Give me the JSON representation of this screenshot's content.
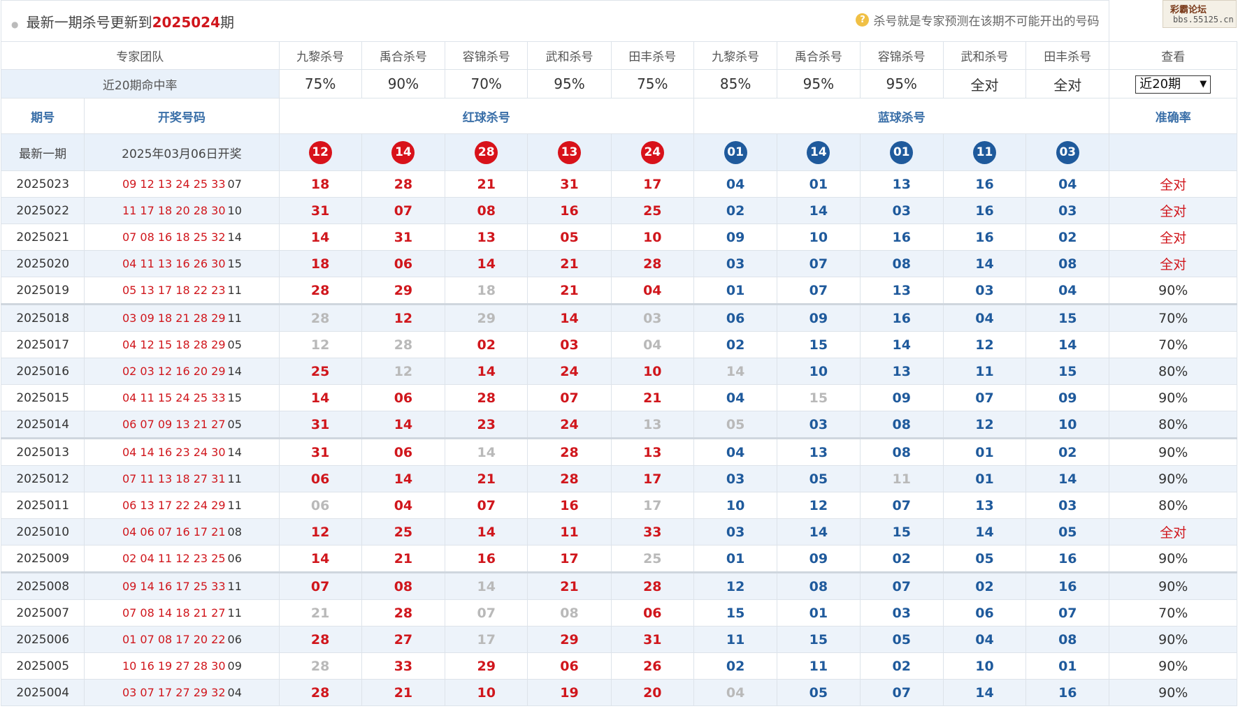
{
  "header": {
    "title_prefix": "最新一期杀号更新到",
    "period": "2025024",
    "title_suffix": "期",
    "hint_icon": "question-icon",
    "hint": "杀号就是专家预测在该期不可能开出的号码",
    "watermark_top": "彩霸论坛",
    "watermark_bottom": "bbs.55125.cn"
  },
  "experts": {
    "team_label": "专家团队",
    "names": [
      "九黎杀号",
      "禹合杀号",
      "容锦杀号",
      "武和杀号",
      "田丰杀号",
      "九黎杀号",
      "禹合杀号",
      "容锦杀号",
      "武和杀号",
      "田丰杀号"
    ],
    "view_label": "查看"
  },
  "rates": {
    "label": "近20期命中率",
    "values": [
      "75%",
      "90%",
      "70%",
      "95%",
      "75%",
      "85%",
      "95%",
      "95%",
      "全对",
      "全对"
    ],
    "select_value": "近20期"
  },
  "sections": {
    "period": "期号",
    "draw": "开奖号码",
    "red": "红球杀号",
    "blue": "蓝球杀号",
    "accuracy": "准确率"
  },
  "latest": {
    "label": "最新一期",
    "date": "2025年03月06日开奖",
    "red": [
      "12",
      "14",
      "28",
      "13",
      "24"
    ],
    "blue": [
      "01",
      "14",
      "01",
      "11",
      "03"
    ]
  },
  "colors": {
    "red": "#d0161c",
    "blue": "#1f5a9c",
    "miss": "#b9b9b9",
    "row_alt": "#edf3fa"
  },
  "rows": [
    {
      "period": "2025023",
      "draw": "09 12 13 24 25 33",
      "blue_ball": "07",
      "kills": [
        "18",
        "28",
        "21",
        "31",
        "17",
        "04",
        "01",
        "13",
        "16",
        "04"
      ],
      "miss": [],
      "acc": "全对"
    },
    {
      "period": "2025022",
      "draw": "11 17 18 20 28 30",
      "blue_ball": "10",
      "kills": [
        "31",
        "07",
        "08",
        "16",
        "25",
        "02",
        "14",
        "03",
        "16",
        "03"
      ],
      "miss": [],
      "acc": "全对"
    },
    {
      "period": "2025021",
      "draw": "07 08 16 18 25 32",
      "blue_ball": "14",
      "kills": [
        "14",
        "31",
        "13",
        "05",
        "10",
        "09",
        "10",
        "16",
        "16",
        "02"
      ],
      "miss": [],
      "acc": "全对"
    },
    {
      "period": "2025020",
      "draw": "04 11 13 16 26 30",
      "blue_ball": "15",
      "kills": [
        "18",
        "06",
        "14",
        "21",
        "28",
        "03",
        "07",
        "08",
        "14",
        "08"
      ],
      "miss": [],
      "acc": "全对"
    },
    {
      "period": "2025019",
      "draw": "05 13 17 18 22 23",
      "blue_ball": "11",
      "kills": [
        "28",
        "29",
        "18",
        "21",
        "04",
        "01",
        "07",
        "13",
        "03",
        "04"
      ],
      "miss": [
        2
      ],
      "acc": "90%"
    },
    {
      "period": "2025018",
      "draw": "03 09 18 21 28 29",
      "blue_ball": "11",
      "kills": [
        "28",
        "12",
        "29",
        "14",
        "03",
        "06",
        "09",
        "16",
        "04",
        "15"
      ],
      "miss": [
        0,
        2,
        4
      ],
      "acc": "70%"
    },
    {
      "period": "2025017",
      "draw": "04 12 15 18 28 29",
      "blue_ball": "05",
      "kills": [
        "12",
        "28",
        "02",
        "03",
        "04",
        "02",
        "15",
        "14",
        "12",
        "14"
      ],
      "miss": [
        0,
        1,
        4
      ],
      "acc": "70%"
    },
    {
      "period": "2025016",
      "draw": "02 03 12 16 20 29",
      "blue_ball": "14",
      "kills": [
        "25",
        "12",
        "14",
        "24",
        "10",
        "14",
        "10",
        "13",
        "11",
        "15"
      ],
      "miss": [
        1,
        5
      ],
      "acc": "80%"
    },
    {
      "period": "2025015",
      "draw": "04 11 15 24 25 33",
      "blue_ball": "15",
      "kills": [
        "14",
        "06",
        "28",
        "07",
        "21",
        "04",
        "15",
        "09",
        "07",
        "09"
      ],
      "miss": [
        6
      ],
      "acc": "90%"
    },
    {
      "period": "2025014",
      "draw": "06 07 09 13 21 27",
      "blue_ball": "05",
      "kills": [
        "31",
        "14",
        "23",
        "24",
        "13",
        "05",
        "03",
        "08",
        "12",
        "10"
      ],
      "miss": [
        4,
        5
      ],
      "acc": "80%"
    },
    {
      "period": "2025013",
      "draw": "04 14 16 23 24 30",
      "blue_ball": "14",
      "kills": [
        "31",
        "06",
        "14",
        "28",
        "13",
        "04",
        "13",
        "08",
        "01",
        "02"
      ],
      "miss": [
        2
      ],
      "acc": "90%"
    },
    {
      "period": "2025012",
      "draw": "07 11 13 18 27 31",
      "blue_ball": "11",
      "kills": [
        "06",
        "14",
        "21",
        "28",
        "17",
        "03",
        "05",
        "11",
        "01",
        "14"
      ],
      "miss": [
        7
      ],
      "acc": "90%"
    },
    {
      "period": "2025011",
      "draw": "06 13 17 22 24 29",
      "blue_ball": "11",
      "kills": [
        "06",
        "04",
        "07",
        "16",
        "17",
        "10",
        "12",
        "07",
        "13",
        "03"
      ],
      "miss": [
        0,
        4
      ],
      "acc": "80%"
    },
    {
      "period": "2025010",
      "draw": "04 06 07 16 17 21",
      "blue_ball": "08",
      "kills": [
        "12",
        "25",
        "14",
        "11",
        "33",
        "03",
        "14",
        "15",
        "14",
        "05"
      ],
      "miss": [],
      "acc": "全对"
    },
    {
      "period": "2025009",
      "draw": "02 04 11 12 23 25",
      "blue_ball": "06",
      "kills": [
        "14",
        "21",
        "16",
        "17",
        "25",
        "01",
        "09",
        "02",
        "05",
        "16"
      ],
      "miss": [
        4
      ],
      "acc": "90%"
    },
    {
      "period": "2025008",
      "draw": "09 14 16 17 25 33",
      "blue_ball": "11",
      "kills": [
        "07",
        "08",
        "14",
        "21",
        "28",
        "12",
        "08",
        "07",
        "02",
        "16"
      ],
      "miss": [
        2
      ],
      "acc": "90%"
    },
    {
      "period": "2025007",
      "draw": "07 08 14 18 21 27",
      "blue_ball": "11",
      "kills": [
        "21",
        "28",
        "07",
        "08",
        "06",
        "15",
        "01",
        "03",
        "06",
        "07"
      ],
      "miss": [
        0,
        2,
        3
      ],
      "acc": "70%"
    },
    {
      "period": "2025006",
      "draw": "01 07 08 17 20 22",
      "blue_ball": "06",
      "kills": [
        "28",
        "27",
        "17",
        "29",
        "31",
        "11",
        "15",
        "05",
        "04",
        "08"
      ],
      "miss": [
        2
      ],
      "acc": "90%"
    },
    {
      "period": "2025005",
      "draw": "10 16 19 27 28 30",
      "blue_ball": "09",
      "kills": [
        "28",
        "33",
        "29",
        "06",
        "26",
        "02",
        "11",
        "02",
        "10",
        "01"
      ],
      "miss": [
        0
      ],
      "acc": "90%"
    },
    {
      "period": "2025004",
      "draw": "03 07 17 27 29 32",
      "blue_ball": "04",
      "kills": [
        "28",
        "21",
        "10",
        "19",
        "20",
        "04",
        "05",
        "07",
        "14",
        "16"
      ],
      "miss": [
        5
      ],
      "acc": "90%"
    }
  ]
}
